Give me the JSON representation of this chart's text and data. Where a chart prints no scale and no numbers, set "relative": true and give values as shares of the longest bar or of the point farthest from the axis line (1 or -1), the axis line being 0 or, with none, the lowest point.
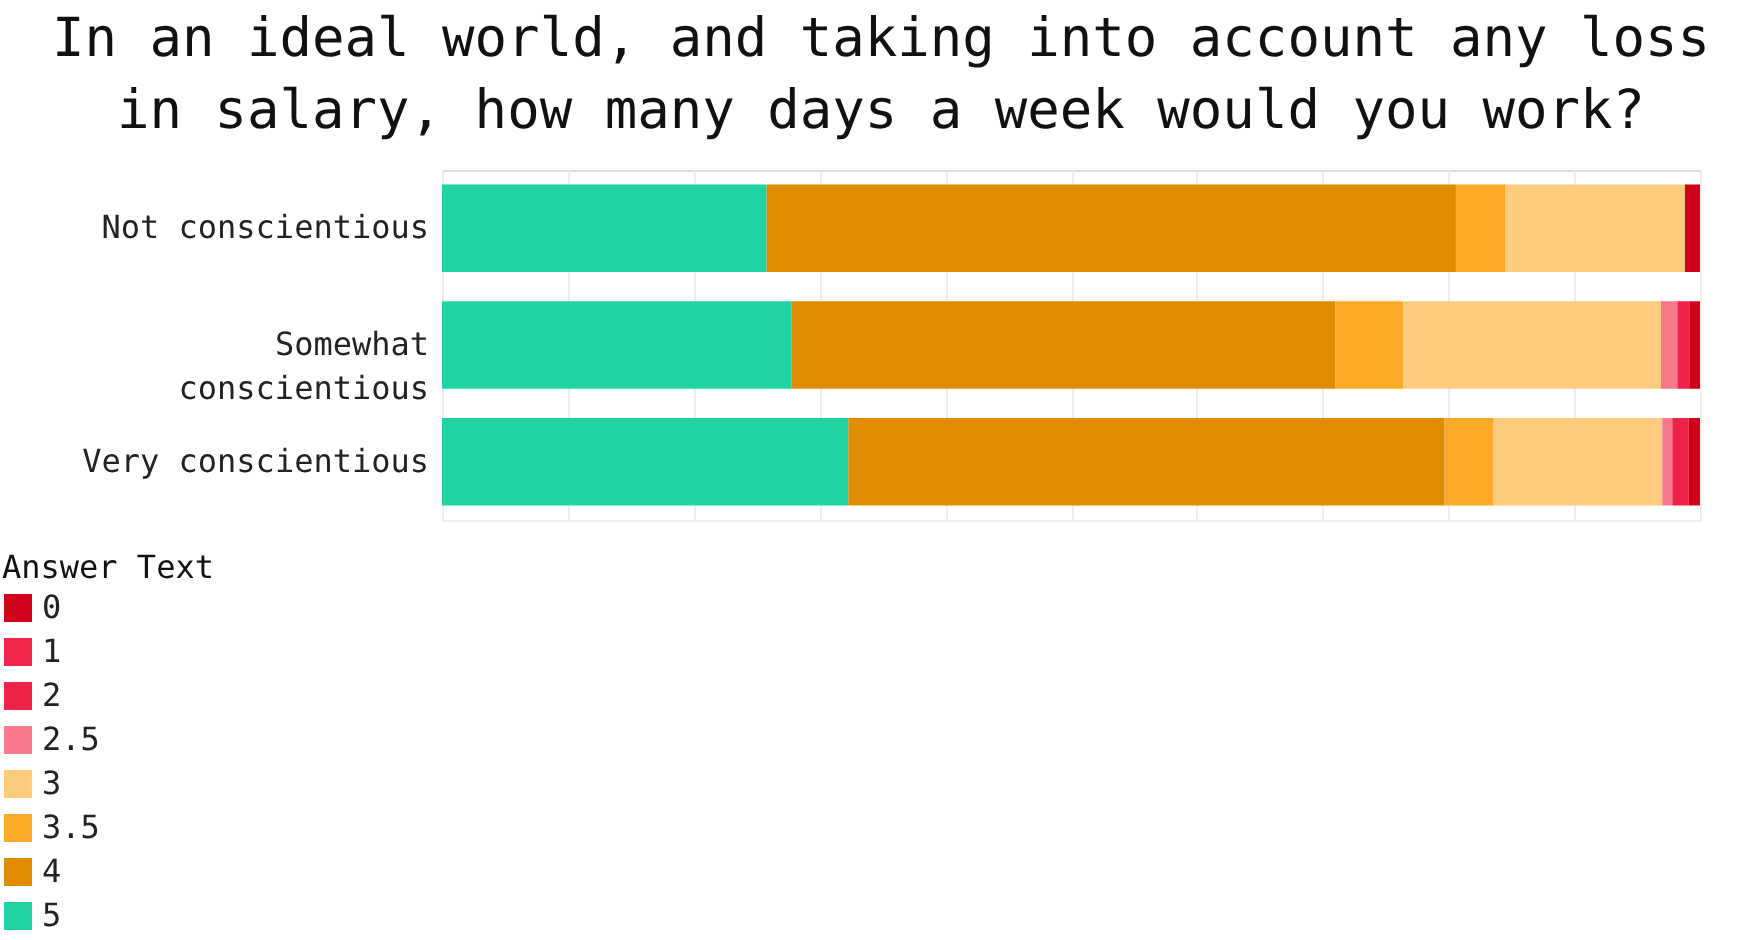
{
  "chart_data": {
    "type": "bar",
    "orientation": "horizontal",
    "stacked": true,
    "relative": true,
    "title": "In an ideal world, and taking into account any loss in salary, how many days a week would you work?",
    "categories": [
      "Not conscientious",
      "Somewhat conscientious",
      "Very conscientious"
    ],
    "legend_title": "Answer Text",
    "legend": "bottom left",
    "grid": "x",
    "series": [
      {
        "name": "5",
        "color": "#1fd3a5",
        "values": [
          0.258,
          0.278,
          0.323
        ]
      },
      {
        "name": "4",
        "color": "#e08c00",
        "values": [
          0.548,
          0.432,
          0.474
        ]
      },
      {
        "name": "3.5",
        "color": "#fba927",
        "values": [
          0.039,
          0.054,
          0.039
        ]
      },
      {
        "name": "3",
        "color": "#fdcb7e",
        "values": [
          0.143,
          0.205,
          0.134
        ]
      },
      {
        "name": "2.5",
        "color": "#f7798c",
        "values": [
          null,
          0.013,
          0.008
        ]
      },
      {
        "name": "2",
        "color": "#ef2348",
        "values": [
          null,
          0.01,
          0.013
        ]
      },
      {
        "name": "1",
        "color": "#f3264c",
        "values": [
          null,
          null,
          null
        ]
      },
      {
        "name": "0",
        "color": "#d0021b",
        "values": [
          0.012,
          0.008,
          0.009
        ]
      }
    ]
  }
}
